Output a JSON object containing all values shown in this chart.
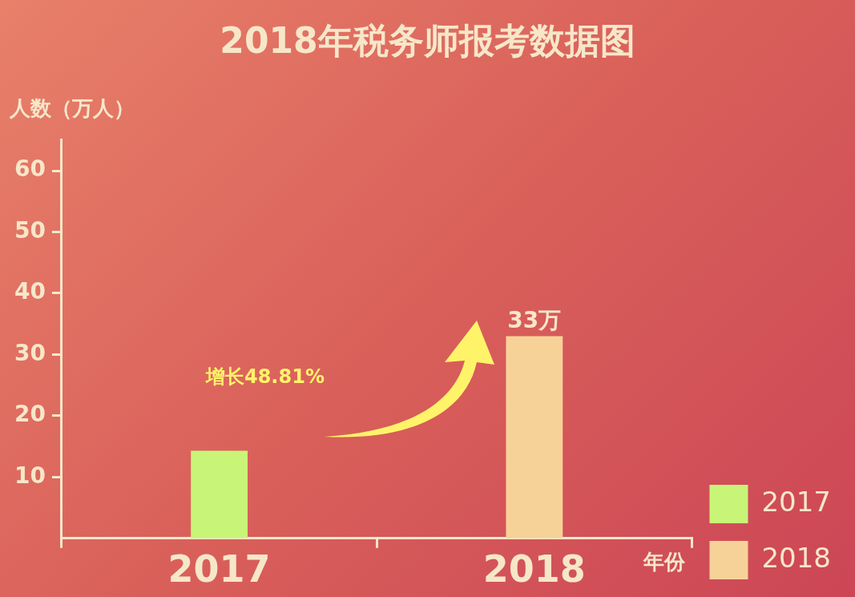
{
  "chart_data": {
    "type": "bar",
    "title": "2018年税务师报考数据图",
    "xlabel": "年份",
    "ylabel": "人数（万人）",
    "categories": [
      "2017",
      "2018"
    ],
    "series": [
      {
        "name": "2017",
        "color": "#c8f578",
        "values": [
          14.3,
          null
        ]
      },
      {
        "name": "2018",
        "color": "#f7d298",
        "values": [
          null,
          33
        ],
        "value_labels": [
          null,
          "33万"
        ]
      }
    ],
    "ylim": [
      0,
      65
    ],
    "yticks": [
      10,
      20,
      30,
      40,
      50,
      60
    ],
    "grid": false,
    "legend": "bottom right",
    "annotations": [
      "增长48.81%"
    ]
  }
}
